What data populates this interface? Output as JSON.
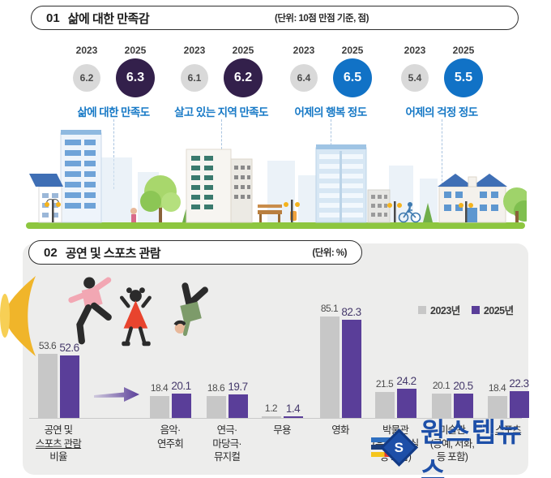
{
  "section1": {
    "number": "01",
    "title": "삶에 대한 만족감",
    "unit": "(단위: 10점 만점 기준, 점)",
    "year_left": "2023",
    "year_right": "2025",
    "label_color": "#1779c6",
    "metrics": [
      {
        "label": "삶에 대한 만족도",
        "v2023": "6.2",
        "v2025": "6.3",
        "circle_color": "#33204b"
      },
      {
        "label": "살고 있는 지역 만족도",
        "v2023": "6.1",
        "v2025": "6.2",
        "circle_color": "#33204b"
      },
      {
        "label": "어제의 행복 정도",
        "v2023": "6.4",
        "v2025": "6.5",
        "circle_color": "#1172c6"
      },
      {
        "label": "어제의 걱정 정도",
        "v2023": "5.4",
        "v2025": "5.5",
        "circle_color": "#1172c6"
      }
    ]
  },
  "section2": {
    "number": "02",
    "title": "공연 및 스포츠 관람",
    "unit": "(단위: %)"
  },
  "chart_data": {
    "type": "bar",
    "title": "공연 및 스포츠 관람",
    "unit": "%",
    "ylim": [
      0,
      90
    ],
    "grid": false,
    "legend_position": "top-right",
    "categories": [
      {
        "lines": [
          "공연 및",
          "스포츠 관람",
          "비율"
        ],
        "underline_line": 1
      },
      {
        "lines": [
          "음악·",
          "연주회"
        ]
      },
      {
        "lines": [
          "연극·",
          "마당극·",
          "뮤지컬"
        ]
      },
      {
        "lines": [
          "무용"
        ]
      },
      {
        "lines": [
          "영화"
        ]
      },
      {
        "lines": [
          "박물관",
          "(유물전시실",
          "등 포함)"
        ]
      },
      {
        "lines": [
          "미술관",
          "(공예, 서화,",
          "등 포함)"
        ]
      },
      {
        "lines": [
          "스포츠"
        ],
        "underline_line": 0
      }
    ],
    "series": [
      {
        "name": "2023년",
        "color": "#c7c7c7",
        "values": [
          53.6,
          18.4,
          18.6,
          1.2,
          85.1,
          21.5,
          20.1,
          18.4
        ]
      },
      {
        "name": "2025년",
        "color": "#5a3e99",
        "values": [
          52.6,
          20.1,
          19.7,
          1.4,
          82.3,
          24.2,
          20.5,
          22.3
        ]
      }
    ]
  },
  "watermark": {
    "text": "원스텝뉴스",
    "color": "#1d4fa8"
  }
}
